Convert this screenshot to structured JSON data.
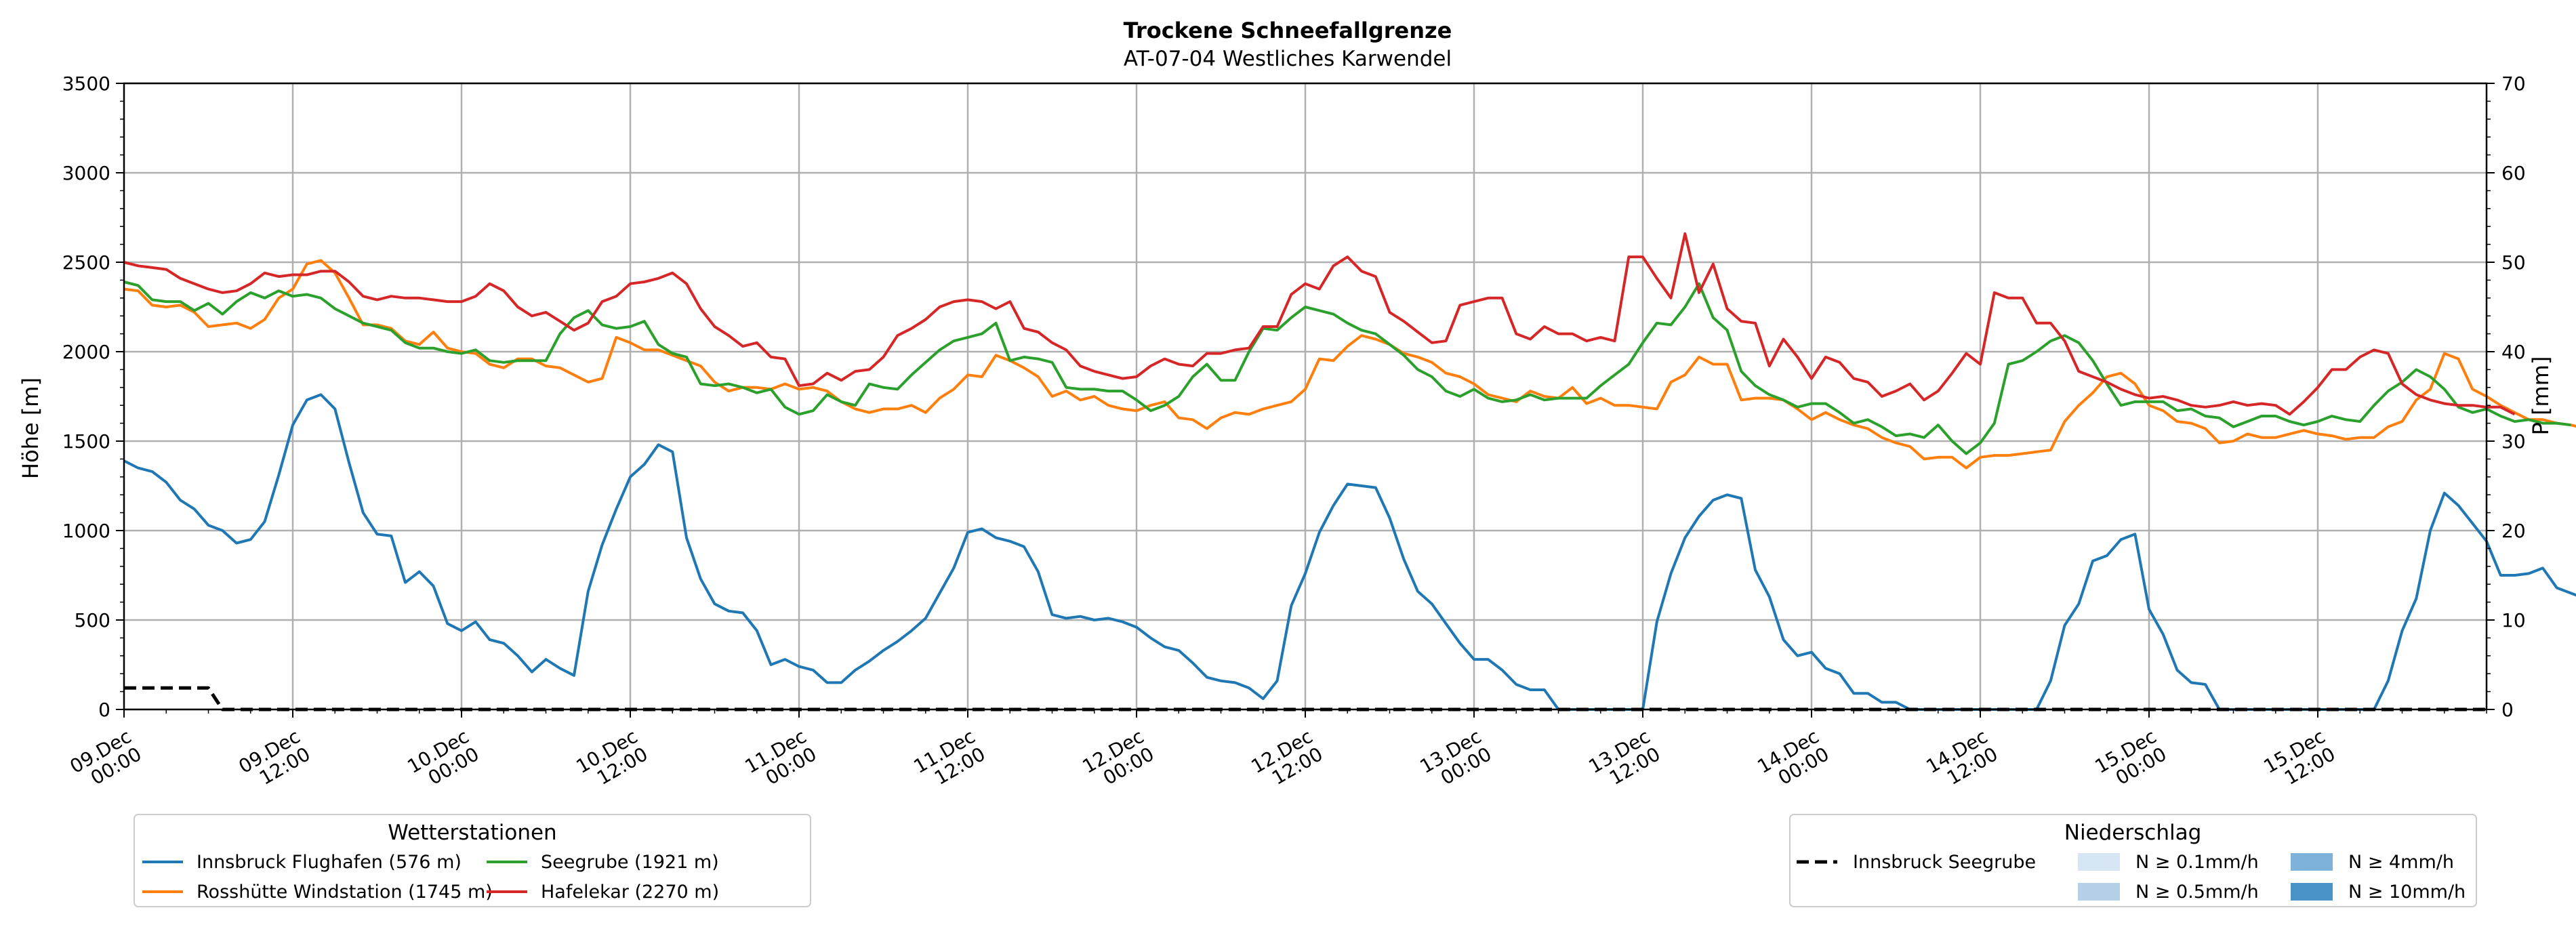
{
  "chart_data": {
    "type": "line",
    "title": "Trockene Schneefallgrenze",
    "subtitle": "AT-07-04 Westliches Karwendel",
    "ylabel": "Höhe [m]",
    "y2label": "P [mm]",
    "ylim": [
      0,
      3500
    ],
    "y2lim": [
      0,
      70
    ],
    "yticks": [
      "0",
      "500",
      "1000",
      "1500",
      "2000",
      "2500",
      "3000",
      "3500"
    ],
    "y2ticks": [
      "0",
      "10",
      "20",
      "30",
      "40",
      "50",
      "60",
      "70"
    ],
    "x_start": "09.Dec 00:00",
    "x_step_hours": 1,
    "xlim_hours": [
      0,
      168
    ],
    "xtick_labels": [
      [
        "09.Dec",
        "00:00"
      ],
      [
        "09.Dec",
        "12:00"
      ],
      [
        "10.Dec",
        "00:00"
      ],
      [
        "10.Dec",
        "12:00"
      ],
      [
        "11.Dec",
        "00:00"
      ],
      [
        "11.Dec",
        "12:00"
      ],
      [
        "12.Dec",
        "00:00"
      ],
      [
        "12.Dec",
        "12:00"
      ],
      [
        "13.Dec",
        "00:00"
      ],
      [
        "13.Dec",
        "12:00"
      ],
      [
        "14.Dec",
        "00:00"
      ],
      [
        "14.Dec",
        "12:00"
      ],
      [
        "15.Dec",
        "00:00"
      ],
      [
        "15.Dec",
        "12:00"
      ]
    ],
    "grid": true,
    "series": [
      {
        "name": "Innsbruck Flughafen (576 m)",
        "color": "#1f77b4",
        "values": [
          1390,
          1350,
          1330,
          1270,
          1170,
          1120,
          1030,
          1000,
          930,
          950,
          1050,
          1310,
          1590,
          1730,
          1760,
          1680,
          1380,
          1100,
          980,
          970,
          710,
          770,
          690,
          480,
          440,
          490,
          390,
          370,
          300,
          210,
          280,
          230,
          190,
          660,
          920,
          1120,
          1300,
          1370,
          1480,
          1440,
          960,
          730,
          590,
          550,
          540,
          440,
          250,
          280,
          240,
          220,
          150,
          150,
          220,
          270,
          330,
          380,
          440,
          510,
          650,
          790,
          990,
          1010,
          960,
          940,
          910,
          770,
          530,
          510,
          520,
          500,
          510,
          490,
          460,
          400,
          350,
          330,
          260,
          180,
          160,
          150,
          120,
          60,
          160,
          580,
          760,
          990,
          1140,
          1260,
          1250,
          1240,
          1070,
          840,
          660,
          590,
          480,
          370,
          280,
          280,
          220,
          140,
          110,
          110,
          0,
          0,
          0,
          0,
          0,
          0,
          0,
          490,
          760,
          960,
          1080,
          1170,
          1200,
          1180,
          780,
          630,
          390,
          300,
          320,
          230,
          200,
          90,
          90,
          40,
          40,
          0,
          0,
          0,
          0,
          0,
          0,
          0,
          0,
          0,
          0,
          160,
          470,
          590,
          830,
          860,
          950,
          980,
          560,
          420,
          220,
          150,
          140,
          0,
          0,
          0,
          0,
          0,
          0,
          0,
          0,
          0,
          0,
          0,
          0,
          160,
          440,
          620,
          1000,
          1210,
          1140,
          1040,
          940,
          750,
          750,
          760,
          790,
          680,
          650,
          620
        ]
      },
      {
        "name": "Rosshütte Windstation (1745 m)",
        "color": "#ff7f0e",
        "values": [
          2350,
          2340,
          2260,
          2250,
          2260,
          2220,
          2140,
          2150,
          2160,
          2130,
          2180,
          2300,
          2350,
          2490,
          2510,
          2440,
          2300,
          2150,
          2150,
          2130,
          2060,
          2040,
          2110,
          2020,
          2000,
          1990,
          1930,
          1910,
          1960,
          1960,
          1920,
          1910,
          1870,
          1830,
          1850,
          2080,
          2050,
          2010,
          2010,
          1980,
          1950,
          1920,
          1830,
          1780,
          1800,
          1800,
          1790,
          1820,
          1790,
          1800,
          1780,
          1720,
          1680,
          1660,
          1680,
          1680,
          1700,
          1660,
          1740,
          1790,
          1870,
          1860,
          1980,
          1950,
          1910,
          1860,
          1750,
          1780,
          1730,
          1750,
          1700,
          1680,
          1670,
          1700,
          1720,
          1630,
          1620,
          1570,
          1630,
          1660,
          1650,
          1680,
          1700,
          1720,
          1790,
          1960,
          1950,
          2030,
          2090,
          2070,
          2040,
          1990,
          1970,
          1940,
          1880,
          1860,
          1820,
          1760,
          1740,
          1720,
          1780,
          1750,
          1740,
          1800,
          1710,
          1740,
          1700,
          1700,
          1690,
          1680,
          1830,
          1870,
          1970,
          1930,
          1930,
          1730,
          1740,
          1740,
          1730,
          1680,
          1620,
          1660,
          1620,
          1590,
          1570,
          1520,
          1490,
          1470,
          1400,
          1410,
          1410,
          1350,
          1410,
          1420,
          1420,
          1430,
          1440,
          1450,
          1610,
          1700,
          1770,
          1860,
          1880,
          1820,
          1700,
          1670,
          1610,
          1600,
          1570,
          1490,
          1500,
          1540,
          1520,
          1520,
          1540,
          1560,
          1540,
          1530,
          1510,
          1520,
          1520,
          1580,
          1610,
          1730,
          1790,
          1990,
          1960,
          1790,
          1750,
          1700,
          1660,
          1620,
          1620,
          1600,
          1590,
          1570
        ]
      },
      {
        "name": "Seegrube (1921 m)",
        "color": "#2ca02c",
        "values": [
          2390,
          2370,
          2290,
          2280,
          2280,
          2230,
          2270,
          2210,
          2280,
          2330,
          2300,
          2340,
          2310,
          2320,
          2300,
          2240,
          2200,
          2160,
          2140,
          2120,
          2050,
          2020,
          2020,
          2000,
          1990,
          2010,
          1950,
          1940,
          1950,
          1950,
          1950,
          2100,
          2190,
          2230,
          2150,
          2130,
          2140,
          2170,
          2040,
          1990,
          1970,
          1820,
          1810,
          1820,
          1800,
          1770,
          1790,
          1690,
          1650,
          1670,
          1760,
          1720,
          1700,
          1820,
          1800,
          1790,
          1870,
          1940,
          2010,
          2060,
          2080,
          2100,
          2160,
          1950,
          1970,
          1960,
          1940,
          1800,
          1790,
          1790,
          1780,
          1780,
          1730,
          1670,
          1700,
          1750,
          1860,
          1930,
          1840,
          1840,
          2000,
          2130,
          2120,
          2190,
          2250,
          2230,
          2210,
          2160,
          2120,
          2100,
          2040,
          1980,
          1900,
          1860,
          1780,
          1750,
          1790,
          1740,
          1720,
          1730,
          1760,
          1730,
          1740,
          1740,
          1740,
          1810,
          1870,
          1930,
          2050,
          2160,
          2150,
          2250,
          2380,
          2190,
          2120,
          1890,
          1810,
          1760,
          1730,
          1690,
          1710,
          1710,
          1660,
          1600,
          1620,
          1580,
          1530,
          1540,
          1520,
          1590,
          1500,
          1430,
          1490,
          1600,
          1930,
          1950,
          2000,
          2060,
          2090,
          2050,
          1950,
          1820,
          1700,
          1720,
          1720,
          1720,
          1670,
          1680,
          1640,
          1630,
          1580,
          1610,
          1640,
          1640,
          1610,
          1590,
          1610,
          1640,
          1620,
          1610,
          1700,
          1780,
          1830,
          1900,
          1860,
          1790,
          1690,
          1660,
          1680,
          1640,
          1610,
          1620,
          1600,
          1600,
          1590
        ]
      },
      {
        "name": "Hafelekar (2270 m)",
        "color": "#d62728",
        "values": [
          2500,
          2480,
          2470,
          2460,
          2410,
          2380,
          2350,
          2330,
          2340,
          2380,
          2440,
          2420,
          2430,
          2430,
          2450,
          2450,
          2390,
          2310,
          2290,
          2310,
          2300,
          2300,
          2290,
          2280,
          2280,
          2310,
          2380,
          2340,
          2250,
          2200,
          2220,
          2170,
          2120,
          2160,
          2280,
          2310,
          2380,
          2390,
          2410,
          2440,
          2380,
          2240,
          2140,
          2090,
          2030,
          2050,
          1970,
          1960,
          1810,
          1820,
          1880,
          1840,
          1890,
          1900,
          1970,
          2090,
          2130,
          2180,
          2250,
          2280,
          2290,
          2280,
          2240,
          2280,
          2130,
          2110,
          2050,
          2010,
          1920,
          1890,
          1870,
          1850,
          1860,
          1920,
          1960,
          1930,
          1920,
          1990,
          1990,
          2010,
          2020,
          2140,
          2140,
          2320,
          2380,
          2350,
          2480,
          2530,
          2450,
          2420,
          2220,
          2170,
          2110,
          2050,
          2060,
          2260,
          2280,
          2300,
          2300,
          2100,
          2070,
          2140,
          2100,
          2100,
          2060,
          2080,
          2060,
          2530,
          2530,
          2410,
          2300,
          2660,
          2330,
          2490,
          2240,
          2170,
          2160,
          1920,
          2070,
          1970,
          1850,
          1970,
          1940,
          1850,
          1830,
          1750,
          1780,
          1820,
          1730,
          1780,
          1880,
          1990,
          1930,
          2330,
          2300,
          2300,
          2160,
          2160,
          2060,
          1890,
          1860,
          1830,
          1790,
          1760,
          1740,
          1750,
          1730,
          1700,
          1690,
          1700,
          1720,
          1700,
          1710,
          1700,
          1650,
          1720,
          1800,
          1900,
          1900,
          1970,
          2010,
          1990,
          1820,
          1760,
          1730,
          1710,
          1700,
          1700,
          1690,
          1690,
          1650
        ]
      },
      {
        "name": "Innsbruck Seegrube",
        "color": "#000000",
        "dashed": true,
        "axis": "P [mm]",
        "points": [
          [
            0,
            2.4
          ],
          [
            6,
            2.4
          ],
          [
            7,
            0
          ],
          [
            168,
            0
          ]
        ]
      }
    ],
    "legends": [
      {
        "title": "Wetterstationen",
        "entries": [
          "Innsbruck Flughafen (576 m)",
          "Rosshütte Windstation (1745 m)",
          "Seegrube (1921 m)",
          "Hafelekar (2270 m)"
        ]
      },
      {
        "title": "Niederschlag",
        "entries": [
          {
            "label": "Innsbruck Seegrube",
            "kind": "dashed-line",
            "color": "#000000"
          },
          {
            "label": "N ≥ 0.1mm/h",
            "kind": "patch",
            "color": "#d6e6f4"
          },
          {
            "label": "N ≥ 0.5mm/h",
            "kind": "patch",
            "color": "#b5d0e6"
          },
          {
            "label": "N ≥ 4mm/h",
            "kind": "patch",
            "color": "#7fb2da"
          },
          {
            "label": "N ≥ 10mm/h",
            "kind": "patch",
            "color": "#4a93c6"
          }
        ]
      }
    ]
  }
}
